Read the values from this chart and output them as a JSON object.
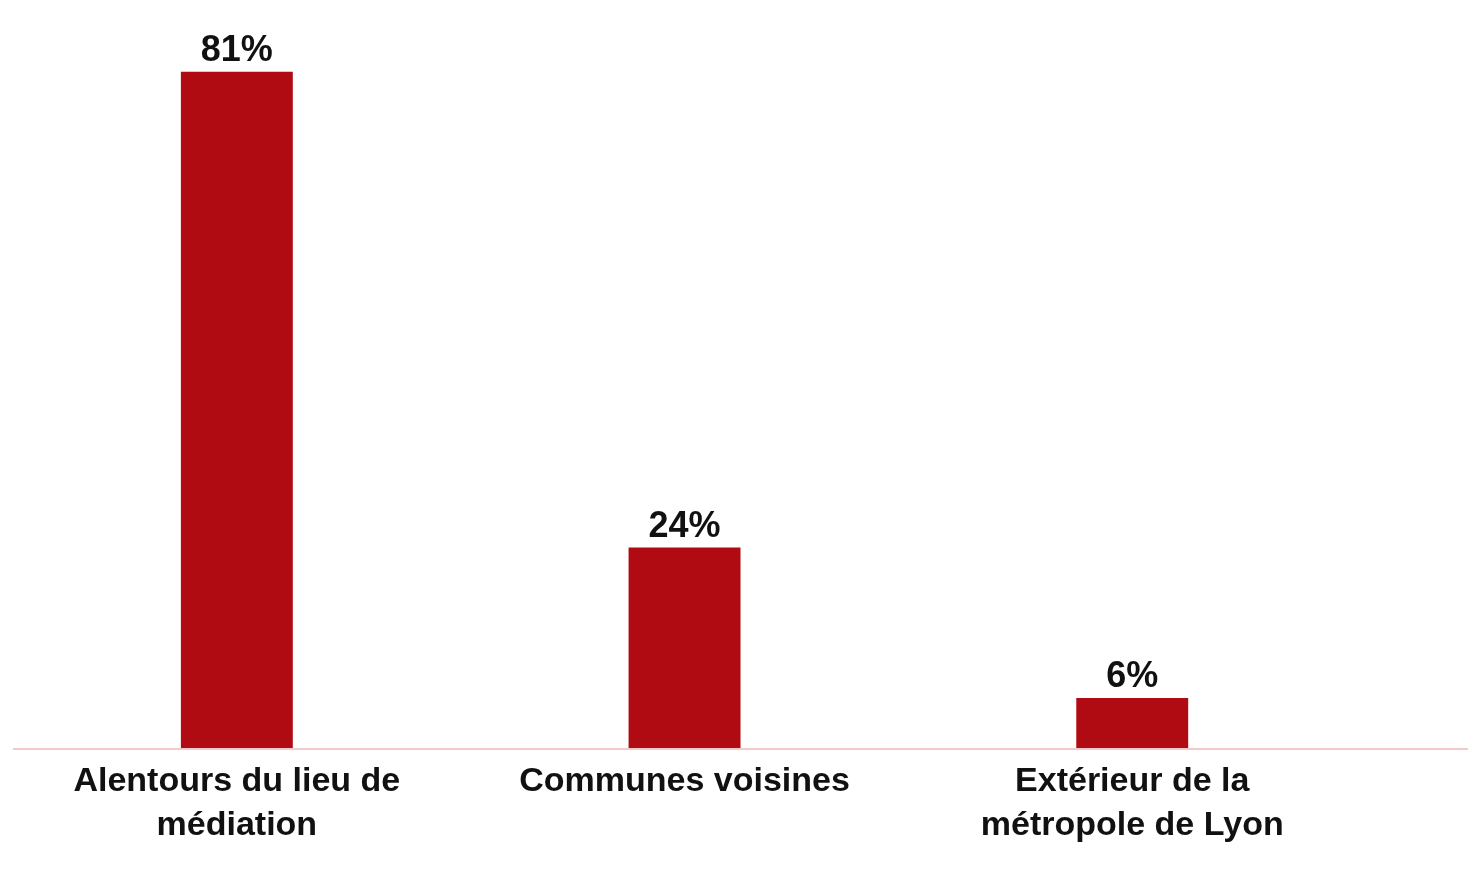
{
  "chart_data": {
    "type": "bar",
    "categories": [
      "Alentours du lieu de médiation",
      "Communes voisines",
      "Extérieur de la métropole de Lyon"
    ],
    "values": [
      81,
      24,
      6
    ],
    "value_labels": [
      "81%",
      "24%",
      "6%"
    ],
    "color": "#b00b13"
  }
}
